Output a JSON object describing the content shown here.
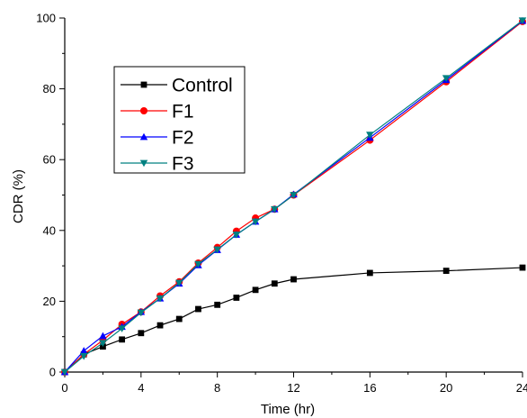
{
  "chart_data": {
    "type": "line",
    "title": "",
    "xlabel": "Time (hr)",
    "ylabel": "CDR (%)",
    "xlim": [
      0,
      24
    ],
    "ylim": [
      0,
      100
    ],
    "x_ticks": [
      0,
      4,
      8,
      12,
      16,
      20,
      24
    ],
    "y_ticks": [
      0,
      20,
      40,
      60,
      80,
      100
    ],
    "grid": false,
    "legend_position": "upper-left",
    "series": [
      {
        "name": "Control",
        "color": "#000000",
        "marker": "square",
        "x": [
          0,
          1,
          2,
          3,
          4,
          5,
          6,
          7,
          8,
          9,
          10,
          11,
          12,
          16,
          20,
          24
        ],
        "y": [
          0,
          5.0,
          7.2,
          9.2,
          11.0,
          13.2,
          15.0,
          17.8,
          19.0,
          21.0,
          23.2,
          25.0,
          26.2,
          28.0,
          28.6,
          29.5
        ]
      },
      {
        "name": "F1",
        "color": "#ff0000",
        "marker": "circle",
        "x": [
          0,
          1,
          2,
          3,
          4,
          5,
          6,
          7,
          8,
          9,
          10,
          11,
          12,
          16,
          20,
          24
        ],
        "y": [
          0,
          5.0,
          9.0,
          13.5,
          17.0,
          21.5,
          25.5,
          30.8,
          35.2,
          39.8,
          43.5,
          46.0,
          50.0,
          65.5,
          82.0,
          99.0
        ]
      },
      {
        "name": "F2",
        "color": "#0000ff",
        "marker": "triangle-up",
        "x": [
          0,
          1,
          2,
          3,
          4,
          5,
          6,
          7,
          8,
          9,
          10,
          11,
          12,
          16,
          20,
          24
        ],
        "y": [
          0,
          6.0,
          10.2,
          12.8,
          17.0,
          20.8,
          25.0,
          30.2,
          34.5,
          38.8,
          42.5,
          46.0,
          50.2,
          66.2,
          82.5,
          99.2
        ]
      },
      {
        "name": "F3",
        "color": "#008080",
        "marker": "triangle-down",
        "x": [
          0,
          1,
          2,
          3,
          4,
          5,
          6,
          7,
          8,
          9,
          10,
          11,
          12,
          16,
          20,
          24
        ],
        "y": [
          0,
          4.5,
          8.2,
          12.3,
          16.8,
          20.8,
          25.2,
          30.5,
          34.6,
          38.8,
          42.5,
          46.0,
          50.0,
          67.0,
          83.0,
          99.3
        ]
      }
    ]
  }
}
